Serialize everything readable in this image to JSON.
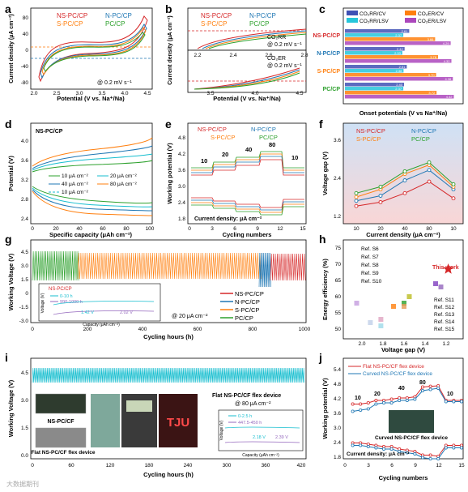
{
  "panels": {
    "a": {
      "letter": "a",
      "xlabel": "Potential (V vs. Na⁺/Na)",
      "ylabel": "Current density (μA cm⁻²)",
      "note": "@ 0.2 mV s⁻¹",
      "xticks": [
        "2.0",
        "2.5",
        "3.0",
        "3.5",
        "4.0",
        "4.5"
      ],
      "yticks": [
        "80",
        "40",
        "0",
        "-40",
        "-80"
      ]
    },
    "b": {
      "letter": "b",
      "xlabel": "Potential (V vs. Na⁺/Na)",
      "ylabel": "Current density (μA cm⁻²)",
      "top_note1": "CO₂RR",
      "top_note2": "@ 0.2 mV s⁻¹",
      "bot_note1": "CO₂ER",
      "bot_note2": "@ 0.2 mV s⁻¹",
      "top_xticks": [
        "2.2",
        "2.4",
        "2.6",
        "2.8"
      ],
      "bot_xticks": [
        "3.5",
        "4.0",
        "4.5"
      ]
    },
    "c": {
      "letter": "c",
      "xlabel": "Onset potentials (V vs Na⁺/Na)",
      "legend": [
        "CO₂RR/CV",
        "CO₂ER/CV",
        "CO₂RR/LSV",
        "CO₂ER/LSV"
      ]
    },
    "d": {
      "letter": "d",
      "xlabel": "Specific capacity (μAh cm⁻²)",
      "ylabel": "Potential (V)",
      "title": "NS-PC/CP",
      "legend": [
        "10 μA cm⁻²",
        "20 μA cm⁻²",
        "40 μA cm⁻²",
        "80 μA cm⁻²",
        "10 μA cm⁻²"
      ],
      "xticks": [
        "0",
        "20",
        "40",
        "60",
        "80",
        "100"
      ],
      "yticks": [
        "4.0",
        "3.6",
        "3.2",
        "2.8",
        "2.4"
      ]
    },
    "e": {
      "letter": "e",
      "xlabel": "Cycling numbers",
      "ylabel": "Working potential (V)",
      "note": "Current density: μA cm⁻²",
      "rates": [
        "10",
        "20",
        "40",
        "80",
        "10"
      ],
      "xticks": [
        "0",
        "3",
        "6",
        "9",
        "12",
        "15"
      ],
      "yticks": [
        "4.8",
        "4.2",
        "3.6",
        "3.0",
        "2.4",
        "1.8"
      ]
    },
    "f": {
      "letter": "f",
      "xlabel": "Current density (μA cm⁻²)",
      "ylabel": "Voltage gap (V)",
      "yticks": [
        "3.6",
        "2.4",
        "1.2"
      ]
    },
    "g": {
      "letter": "g",
      "xlabel": "Cycling hours (h)",
      "ylabel": "Working Voltage (V)",
      "note": "@ 20 μA cm⁻²",
      "xticks": [
        "0",
        "200",
        "400",
        "600",
        "800",
        "1000"
      ],
      "yticks": [
        "4.5",
        "3.0",
        "1.5",
        "0",
        "-1.5",
        "-3.0"
      ],
      "inset": {
        "title": "NS-PC/CP",
        "leg1": "0-10 h",
        "leg2": "990-1000 h",
        "v1": "1.42 V",
        "v2": "2.02 V",
        "xlabel": "Capacity (μAh cm⁻²)",
        "ylabel": "Voltage (V)",
        "xticks": [
          "0",
          "50",
          "100"
        ],
        "yticks": [
          "4",
          "2",
          "0"
        ]
      }
    },
    "h": {
      "letter": "h",
      "xlabel": "Voltage gap (V)",
      "ylabel": "Energy efficiency (%)",
      "this_work": "This work",
      "refs_a": [
        "Ref. S6",
        "Ref. S7",
        "Ref. S8",
        "Ref. S9",
        "Ref. S10"
      ],
      "refs_b": [
        "Ref. S11",
        "Ref. S12",
        "Ref. S13",
        "Ref. S14",
        "Ref. S15"
      ],
      "xticks": [
        "2.0",
        "1.8",
        "1.6",
        "1.4",
        "1.2"
      ],
      "yticks": [
        "75",
        "70",
        "65",
        "60",
        "55",
        "50"
      ]
    },
    "i": {
      "letter": "i",
      "xlabel": "Cycling hours (h)",
      "ylabel": "Working Voltage (V)",
      "title": "Flat NS-PC/CF flex device",
      "rate": "@ 80 μA cm⁻²",
      "photo_labels": [
        "NS-PC/CF",
        "Flat NS-PC/CF flex device",
        "TJU"
      ],
      "xticks": [
        "0",
        "60",
        "120",
        "180",
        "240",
        "300",
        "360",
        "420"
      ],
      "yticks": [
        "4.5",
        "3.0",
        "1.5",
        "0.0"
      ],
      "inset": {
        "leg1": "0-2.5 h",
        "leg2": "447.5-450 h",
        "v1": "2.18 V",
        "v2": "2.39 V",
        "xlabel": "Capacity (μAh cm⁻²)",
        "ylabel": "Voltage (V)",
        "xticks": [
          "0",
          "50",
          "100"
        ],
        "yticks": [
          "4",
          "2",
          "0"
        ]
      }
    },
    "j": {
      "letter": "j",
      "xlabel": "Cycling numbers",
      "ylabel": "Working potential (V)",
      "note": "Current density: μA cm⁻²",
      "legend": [
        "Flat NS-PC/CF flex device",
        "Curved NS-PC/CF flex device"
      ],
      "photo_label": "Curved NS-PC/CF flex device",
      "rates": [
        "10",
        "20",
        "40",
        "80",
        "10"
      ],
      "xticks": [
        "0",
        "3",
        "6",
        "9",
        "12",
        "15"
      ],
      "yticks": [
        "5.4",
        "4.8",
        "4.2",
        "3.6",
        "3.0",
        "2.4",
        "1.8"
      ]
    }
  },
  "series_names": [
    "NS-PC/CP",
    "N-PC/CP",
    "S-PC/CP",
    "PC/CP"
  ],
  "colors": {
    "ns": "#d62728",
    "n": "#1f77b4",
    "s": "#ff7f0e",
    "pc": "#2ca02c",
    "teal": "#17becf"
  },
  "watermark": "大数据期刊",
  "chart_data": [
    {
      "panel": "c",
      "type": "bar",
      "orientation": "horizontal",
      "categories": [
        "NS-PC/CP",
        "N-PC/CP",
        "S-PC/CP",
        "PC/CP"
      ],
      "series": [
        {
          "name": "CO₂RR/CV",
          "values": [
            2.61,
            2.42,
            2.51,
            2.4
          ]
        },
        {
          "name": "CO₂RR/LSV",
          "values": [
            2.37,
            2.33,
            2.38,
            2.37
          ]
        },
        {
          "name": "CO₂ER/CV",
          "values": [
            3.66,
            3.78,
            3.7,
            3.72
          ]
        },
        {
          "name": "CO₂ER/LSV",
          "values": [
            4.29,
            4.32,
            4.38,
            4.42
          ]
        }
      ]
    },
    {
      "panel": "f",
      "type": "line",
      "x": [
        10,
        20,
        40,
        80,
        10
      ],
      "xlabel": "Current density (μA cm⁻²)",
      "ylabel": "Voltage gap (V)",
      "series": [
        {
          "name": "NS-PC/CP",
          "values": [
            1.1,
            1.25,
            1.6,
            2.05,
            1.4
          ]
        },
        {
          "name": "N-PC/CP",
          "values": [
            1.3,
            1.5,
            2.1,
            2.5,
            1.75
          ]
        },
        {
          "name": "S-PC/CP",
          "values": [
            1.45,
            1.75,
            2.35,
            2.7,
            1.85
          ]
        },
        {
          "name": "PC/CP",
          "values": [
            1.6,
            1.85,
            2.45,
            2.8,
            1.95
          ]
        }
      ]
    },
    {
      "panel": "h",
      "type": "scatter",
      "xlabel": "Voltage gap (V)",
      "ylabel": "Energy efficiency (%)",
      "points": [
        {
          "name": "This work",
          "x": 1.18,
          "y": 68.5
        },
        {
          "name": "Ref. S6",
          "x": 1.25,
          "y": 63
        },
        {
          "name": "Ref. S7",
          "x": 1.3,
          "y": 64
        },
        {
          "name": "Ref. S8",
          "x": 1.7,
          "y": 57
        },
        {
          "name": "Ref. S9",
          "x": 1.6,
          "y": 58
        },
        {
          "name": "Ref. S10",
          "x": 1.55,
          "y": 60
        },
        {
          "name": "Ref. S11",
          "x": 2.05,
          "y": 58
        },
        {
          "name": "Ref. S12",
          "x": 1.82,
          "y": 51
        },
        {
          "name": "Ref. S13",
          "x": 1.82,
          "y": 53
        },
        {
          "name": "Ref. S14",
          "x": 1.92,
          "y": 52
        },
        {
          "name": "Ref. S15",
          "x": 1.6,
          "y": 57
        }
      ]
    },
    {
      "panel": "j",
      "type": "line",
      "xlabel": "Cycling numbers",
      "ylabel": "Working potential (V)",
      "x": [
        1,
        2,
        3,
        4,
        5,
        6,
        7,
        8,
        9,
        10,
        11,
        12,
        13,
        14,
        15
      ],
      "series": [
        {
          "name": "Flat NS-PC/CF flex device",
          "charge": [
            4.05,
            4.05,
            4.1,
            4.2,
            4.2,
            4.25,
            4.3,
            4.3,
            4.35,
            4.75,
            4.78,
            4.8,
            4.2,
            4.2,
            4.2
          ],
          "discharge": [
            2.45,
            2.45,
            2.4,
            2.35,
            2.3,
            2.3,
            2.2,
            2.15,
            2.1,
            1.95,
            1.95,
            1.9,
            2.35,
            2.35,
            2.35
          ]
        },
        {
          "name": "Curved NS-PC/CF flex device",
          "charge": [
            3.75,
            3.8,
            3.85,
            4.05,
            4.1,
            4.1,
            4.2,
            4.2,
            4.25,
            4.6,
            4.65,
            4.7,
            4.15,
            4.15,
            4.15
          ],
          "discharge": [
            2.35,
            2.35,
            2.3,
            2.25,
            2.2,
            2.2,
            2.1,
            2.05,
            2.0,
            1.85,
            1.8,
            1.8,
            2.25,
            2.25,
            2.25
          ]
        }
      ]
    }
  ]
}
